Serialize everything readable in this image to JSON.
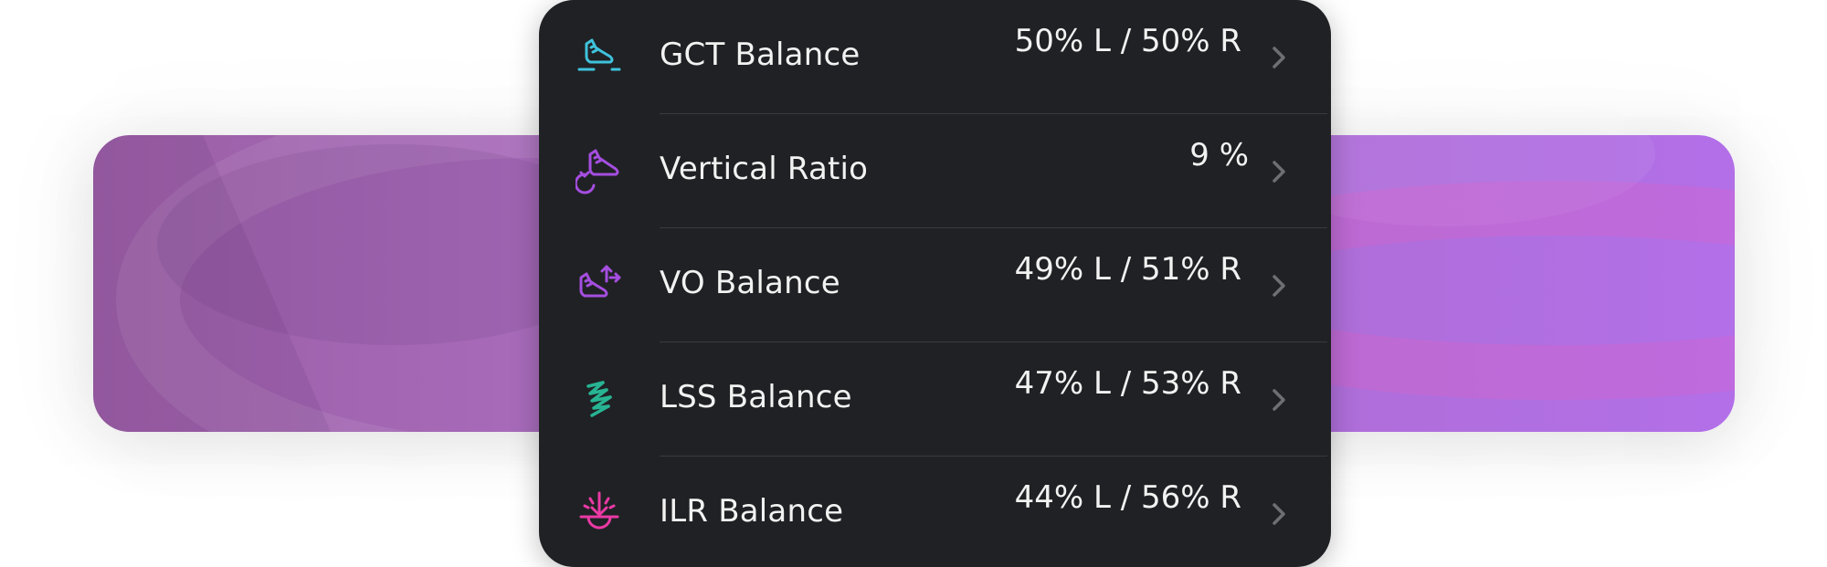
{
  "colors": {
    "card_background": "#202124",
    "text": "#f2f2f2",
    "divider": "#3a3b3f",
    "chevron": "#6e6f73",
    "banner_start": "#9b5ea5",
    "banner_end": "#b26fe8"
  },
  "metrics": [
    {
      "label": "GCT Balance",
      "value": "50% L / 50% R",
      "icon": "running-shoe-ground-icon",
      "icon_color": "#3fc3dd"
    },
    {
      "label": "Vertical Ratio",
      "value": "9 %",
      "icon": "shoe-rotate-icon",
      "icon_color": "#a54ee0"
    },
    {
      "label": "VO Balance",
      "value": "49% L / 51% R",
      "icon": "shoe-vertical-arrows-icon",
      "icon_color": "#a54ee0"
    },
    {
      "label": "LSS Balance",
      "value": "47% L / 53% R",
      "icon": "spring-icon",
      "icon_color": "#27b493"
    },
    {
      "label": "ILR Balance",
      "value": "44% L / 56% R",
      "icon": "impact-arrow-icon",
      "icon_color": "#ea3aa5"
    }
  ]
}
